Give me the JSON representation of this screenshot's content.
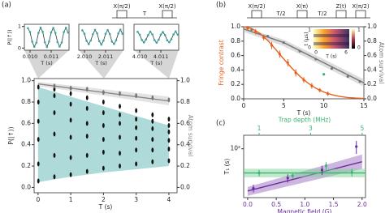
{
  "chart_data": [
    {
      "type": "scatter",
      "label": "(a)",
      "pulse_labels": [
        "X(π/2)",
        "T",
        "X(π/2)"
      ],
      "xlabel": "T (s)",
      "ylabel": "P(|↑⟩)",
      "y2label": "Atom survival",
      "xlim": [
        -0.12,
        4.25
      ],
      "ylim": [
        -0.05,
        1.02
      ],
      "y2lim": [
        -0.05,
        1.02
      ],
      "xticks": [
        0,
        1,
        2,
        3,
        4
      ],
      "yticks": [
        {
          "value": 0,
          "label": "0.0"
        },
        0.2,
        0.4,
        0.6,
        0.8,
        {
          "value": 1,
          "label": "1.0"
        }
      ],
      "y2ticks": [
        {
          "value": 0,
          "label": "0.0"
        },
        0.2,
        0.4,
        0.6,
        0.8,
        {
          "value": 1,
          "label": "1.0"
        }
      ],
      "series": [
        {
          "kind": "band",
          "color": "#5db7b3",
          "x": [
            0,
            1,
            2,
            3,
            4
          ],
          "lower": [
            0.05,
            0.1,
            0.14,
            0.17,
            0.2
          ],
          "upper": [
            0.94,
            0.85,
            0.76,
            0.67,
            0.58
          ]
        },
        {
          "kind": "band",
          "color": "#c8c8c8",
          "axis": "y2",
          "x": [
            0,
            4
          ],
          "lower": [
            0.95,
            0.77
          ],
          "upper": [
            0.99,
            0.85
          ]
        },
        {
          "kind": "line",
          "color": "#888888",
          "axis": "y2",
          "x": [
            0,
            4
          ],
          "values": [
            0.97,
            0.81
          ]
        },
        {
          "kind": "points",
          "color": "#111111",
          "x": [
            0.01,
            0.01,
            0.01,
            0.01,
            0.01,
            0.01,
            0.5,
            0.5,
            0.5,
            0.5,
            0.5,
            0.5,
            1,
            1,
            1,
            1,
            1,
            1,
            1.5,
            1.5,
            1.5,
            1.5,
            1.5,
            1.5,
            2,
            2,
            2,
            2,
            2,
            2,
            2.5,
            2.5,
            2.5,
            2.5,
            2.5,
            2.5,
            3,
            3,
            3,
            3,
            3,
            3,
            3.5,
            3.5,
            3.5,
            3.5,
            3.5,
            3.5,
            4,
            4,
            4,
            4,
            4,
            4
          ],
          "values": [
            0.06,
            0.22,
            0.45,
            0.62,
            0.8,
            0.94,
            0.1,
            0.3,
            0.5,
            0.7,
            0.86,
            0.92,
            0.12,
            0.28,
            0.47,
            0.63,
            0.78,
            0.88,
            0.15,
            0.3,
            0.48,
            0.6,
            0.74,
            0.84,
            0.18,
            0.33,
            0.45,
            0.58,
            0.7,
            0.8,
            0.2,
            0.32,
            0.47,
            0.6,
            0.68,
            0.76,
            0.22,
            0.35,
            0.46,
            0.56,
            0.64,
            0.72,
            0.24,
            0.35,
            0.45,
            0.55,
            0.62,
            0.68,
            0.25,
            0.36,
            0.44,
            0.52,
            0.58,
            0.64
          ]
        },
        {
          "kind": "points",
          "color": "#777777",
          "axis": "y2",
          "x": [
            0.5,
            1,
            1.5,
            2,
            2.5,
            3,
            3.5,
            4
          ],
          "values": [
            0.95,
            0.93,
            0.92,
            0.89,
            0.88,
            0.86,
            0.84,
            0.82
          ]
        }
      ]
    },
    {
      "type": "line",
      "xlabel": "T (s)",
      "ylabel": "P(|↑⟩)",
      "xlim": [
        0.009731,
        0.011846
      ],
      "ylim": [
        -0.1,
        1.1
      ],
      "xticks": [
        {
          "value": 0.01,
          "label": "0.010"
        },
        0.011
      ],
      "yticks": [
        0,
        1
      ],
      "series": [
        {
          "color": "#3aa6a0",
          "x": [
            0.0099,
            0.01,
            0.0101,
            0.0102,
            0.0103,
            0.0104,
            0.0105,
            0.0106,
            0.0107,
            0.0108,
            0.0109,
            0.011,
            0.0111,
            0.0112,
            0.0113,
            0.0114,
            0.0115,
            0.0116,
            0.0117,
            0.0118
          ],
          "values": [
            0.92,
            0.74,
            0.3,
            0.06,
            0.25,
            0.7,
            0.95,
            0.75,
            0.27,
            0.05,
            0.3,
            0.72,
            0.93,
            0.7,
            0.28,
            0.07,
            0.26,
            0.74,
            0.94,
            0.72
          ]
        }
      ]
    },
    {
      "type": "line",
      "xlabel": "T (s)",
      "xlim": [
        2.009731,
        2.011846
      ],
      "ylim": [
        -0.1,
        1.1
      ],
      "xticks": [
        {
          "value": 2.01,
          "label": "2.010"
        },
        2.011
      ],
      "series": [
        {
          "color": "#3aa6a0",
          "x": [
            2.0099,
            2.01,
            2.0101,
            2.0102,
            2.0103,
            2.0104,
            2.0105,
            2.0106,
            2.0107,
            2.0108,
            2.0109,
            2.011,
            2.0111,
            2.0112,
            2.0113,
            2.0114,
            2.0115,
            2.0116,
            2.0117,
            2.0118
          ],
          "values": [
            0.82,
            0.66,
            0.33,
            0.18,
            0.35,
            0.64,
            0.84,
            0.68,
            0.32,
            0.16,
            0.34,
            0.66,
            0.83,
            0.65,
            0.3,
            0.19,
            0.36,
            0.67,
            0.85,
            0.66
          ]
        }
      ]
    },
    {
      "type": "line",
      "xlabel": "T (s)",
      "xlim": [
        4.009731,
        4.011846
      ],
      "ylim": [
        -0.1,
        1.1
      ],
      "xticks": [
        {
          "value": 4.01,
          "label": "4.010"
        },
        4.011
      ],
      "series": [
        {
          "color": "#3aa6a0",
          "x": [
            4.0099,
            4.01,
            4.0101,
            4.0102,
            4.0103,
            4.0104,
            4.0105,
            4.0106,
            4.0107,
            4.0108,
            4.0109,
            4.011,
            4.0111,
            4.0112,
            4.0113,
            4.0114,
            4.0115,
            4.0116,
            4.0117,
            4.0118
          ],
          "values": [
            0.75,
            0.62,
            0.38,
            0.26,
            0.4,
            0.6,
            0.76,
            0.63,
            0.37,
            0.25,
            0.39,
            0.62,
            0.74,
            0.6,
            0.36,
            0.27,
            0.41,
            0.63,
            0.77,
            0.62
          ]
        }
      ]
    },
    {
      "type": "scatter",
      "label": "(b)",
      "pulse_labels": [
        "X(π/2)",
        "T/2",
        "X(π)",
        "T/2",
        "Z(t)",
        "X(π/2)"
      ],
      "xlabel": "T (s)",
      "ylabel": "Fringe contrast",
      "y2label": "Atom survival",
      "xlim": [
        0,
        15
      ],
      "ylim": [
        0,
        1
      ],
      "y2lim": [
        0,
        1
      ],
      "xticks": [
        0,
        5,
        10,
        15
      ],
      "yticks": [
        {
          "value": 0,
          "label": "0.0"
        },
        0.2,
        0.4,
        0.6,
        0.8,
        {
          "value": 1,
          "label": "1.0"
        }
      ],
      "y2ticks": [
        {
          "value": 0,
          "label": "0.0"
        },
        0.2,
        0.4,
        0.6,
        0.8,
        {
          "value": 1,
          "label": "1.0"
        }
      ],
      "inset": {
        "ylabel": "t (μs)",
        "xlabel": "T (s)",
        "yticks": [
          0,
          1
        ],
        "xticks": [
          0,
          6
        ],
        "cticks": [
          0,
          1
        ]
      },
      "series": [
        {
          "kind": "band",
          "color": "#bbbbbb",
          "axis": "y2",
          "x": [
            0,
            5,
            10,
            15
          ],
          "lower": [
            0.93,
            0.73,
            0.45,
            0.17
          ],
          "upper": [
            0.99,
            0.82,
            0.55,
            0.27
          ]
        },
        {
          "kind": "line",
          "color": "#777777",
          "axis": "y2",
          "x": [
            0,
            5,
            10,
            15
          ],
          "values": [
            0.97,
            0.78,
            0.5,
            0.22
          ]
        },
        {
          "kind": "points",
          "color": "#777777",
          "axis": "y2",
          "x": [
            1,
            3,
            5,
            7,
            9,
            11,
            13,
            14.5
          ],
          "values": [
            0.96,
            0.87,
            0.78,
            0.66,
            0.55,
            0.42,
            0.31,
            0.24
          ]
        },
        {
          "kind": "line",
          "color": "#e8601c",
          "x": [
            0,
            1,
            2,
            3,
            4,
            5,
            6,
            7,
            8,
            9,
            10,
            11,
            12,
            13,
            14,
            15
          ],
          "values": [
            1,
            0.976,
            0.91,
            0.81,
            0.685,
            0.553,
            0.427,
            0.314,
            0.22,
            0.147,
            0.094,
            0.057,
            0.033,
            0.018,
            0.01,
            0.005
          ]
        },
        {
          "kind": "points",
          "color": "#e8601c",
          "x": [
            0.5,
            1.5,
            2.5,
            3.5,
            4.5,
            5.5,
            6.5,
            7.5,
            8.5,
            9.5,
            10.5
          ],
          "values": [
            0.98,
            0.93,
            0.85,
            0.74,
            0.62,
            0.5,
            0.36,
            0.26,
            0.18,
            0.12,
            0.07
          ],
          "errors": [
            0.03,
            0.04,
            0.04,
            0.05,
            0.05,
            0.05,
            0.05,
            0.04,
            0.04,
            0.03,
            0.03
          ]
        },
        {
          "kind": "points",
          "color": "#3cb371",
          "x": [
            10
          ],
          "values": [
            0.34
          ]
        }
      ]
    },
    {
      "type": "scatter",
      "label": "(c)",
      "xlabel": "Magnetic field (G)",
      "x2label": "Trap depth (MHz)",
      "ylabel": "T₁ (s)",
      "xlim": [
        -0.07,
        2.06
      ],
      "x2lim": [
        0.4,
        5.13
      ],
      "ylim": [
        12,
        180
      ],
      "yscale": "log",
      "xticks": [
        {
          "value": 0,
          "label": "0.0"
        },
        0.5,
        {
          "value": 1,
          "label": "1.0"
        },
        1.5,
        {
          "value": 2,
          "label": "2.0"
        }
      ],
      "x2ticks": [
        1,
        3,
        5
      ],
      "yticks": [
        {
          "value": 100,
          "label": "10²"
        }
      ],
      "series": [
        {
          "kind": "band",
          "color": "#9b6fc2",
          "x": [
            0,
            2
          ],
          "lower": [
            13,
            42
          ],
          "upper": [
            19,
            78
          ]
        },
        {
          "kind": "line",
          "color": "#6a2c9a",
          "x": [
            0,
            2
          ],
          "values": [
            16,
            57
          ]
        },
        {
          "kind": "band",
          "color": "#7fd49a",
          "xaxis": "x2",
          "x": [
            0.4,
            5.13
          ],
          "lower": [
            29,
            29
          ],
          "upper": [
            42,
            42
          ]
        },
        {
          "kind": "line",
          "color": "#3cb371",
          "xaxis": "x2",
          "x": [
            0.4,
            5.13
          ],
          "values": [
            35,
            35
          ]
        },
        {
          "kind": "points",
          "color": "#3cb371",
          "xaxis": "x2",
          "x": [
            1,
            2.3,
            3.6,
            4.6
          ],
          "values": [
            35,
            31,
            48,
            36
          ],
          "errors": [
            5,
            4,
            8,
            6
          ]
        },
        {
          "kind": "points",
          "color": "#6a2c9a",
          "x": [
            0.1,
            0.7,
            1.3,
            1.9
          ],
          "values": [
            18,
            28,
            40,
            110
          ],
          "errors": [
            3,
            5,
            8,
            30
          ]
        }
      ]
    }
  ]
}
